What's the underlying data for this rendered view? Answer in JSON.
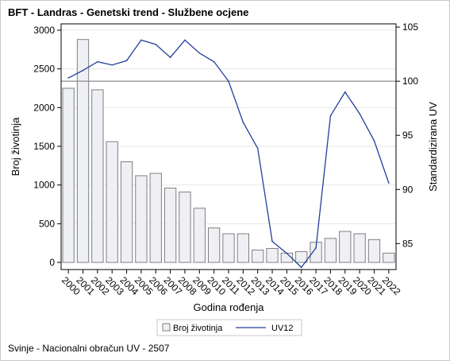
{
  "title": "BFT - Landras - Genetski trend - Službene ocjene",
  "footnote": "Svinje - Nacionalni obračun UV - 2507",
  "colors": {
    "bar_fill": "#eef0f4",
    "bar_stroke": "#7f7f7f",
    "line": "#20409a",
    "grid": "#e6e6e6",
    "reference_line": "#8c8c8c",
    "axis": "#000000"
  },
  "chart_data": {
    "type": "bar+line",
    "xlabel": "Godina rođenja",
    "ylabel_left": "Broj životinja",
    "ylabel_right": "Standardizirana UV",
    "categories": [
      "2000",
      "2001",
      "2002",
      "2003",
      "2004",
      "2005",
      "2006",
      "2007",
      "2008",
      "2009",
      "2010",
      "2011",
      "2012",
      "2013",
      "2014",
      "2015",
      "2016",
      "2017",
      "2018",
      "2019",
      "2020",
      "2021",
      "2022"
    ],
    "ylim_left": [
      0,
      3000
    ],
    "yticks_left": [
      0,
      500,
      1000,
      1500,
      2000,
      2500,
      3000
    ],
    "ylim_right": [
      82.6,
      105.3
    ],
    "yticks_right": [
      85,
      90,
      95,
      100,
      105
    ],
    "reference_line_right": 100,
    "grid": true,
    "legend_position": "bottom",
    "series": [
      {
        "name": "Broj životinja",
        "kind": "bar",
        "axis": "left",
        "values": [
          2250,
          2880,
          2230,
          1560,
          1300,
          1120,
          1150,
          960,
          910,
          700,
          445,
          370,
          370,
          160,
          180,
          120,
          140,
          260,
          310,
          400,
          370,
          295,
          120
        ]
      },
      {
        "name": "UV12",
        "kind": "line",
        "axis": "right",
        "values": [
          100.3,
          101.0,
          101.8,
          101.5,
          101.9,
          103.8,
          103.4,
          102.2,
          103.8,
          102.6,
          101.8,
          100.0,
          96.2,
          93.8,
          85.2,
          84.1,
          82.8,
          84.6,
          96.8,
          99.0,
          97.0,
          94.5,
          90.6
        ]
      }
    ]
  }
}
